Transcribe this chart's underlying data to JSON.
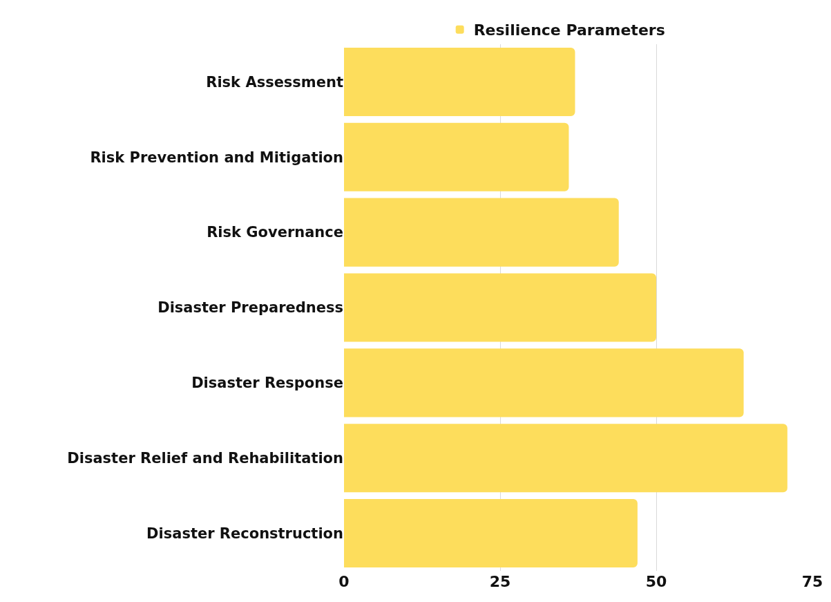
{
  "chart_data": {
    "type": "bar",
    "orientation": "horizontal",
    "categories": [
      "Risk Assessment",
      "Risk Prevention and Mitigation",
      "Risk Governance",
      "Disaster Preparedness",
      "Disaster Response",
      "Disaster Relief and Rehabilitation",
      "Disaster Reconstruction"
    ],
    "series": [
      {
        "name": "Resilience Parameters",
        "color": "#fddd5c",
        "values": [
          37,
          36,
          44,
          50,
          64,
          71,
          47
        ]
      }
    ],
    "xlim": [
      0,
      75
    ],
    "xticks": [
      0,
      25,
      50,
      75
    ],
    "grid": "x",
    "legend": "top"
  }
}
